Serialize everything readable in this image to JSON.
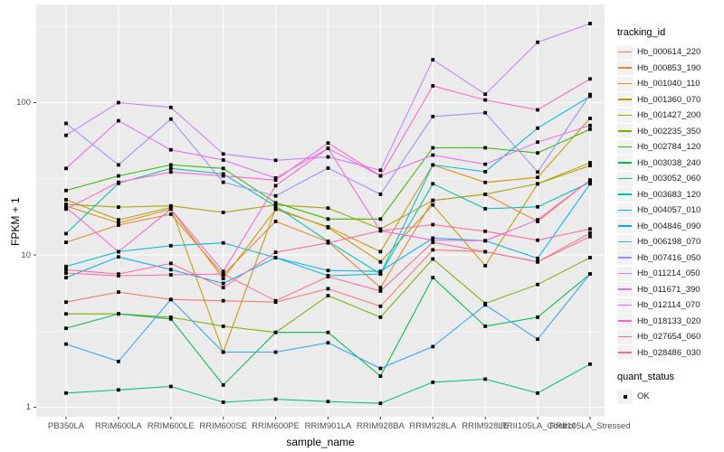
{
  "chart_data": {
    "type": "line",
    "title": "",
    "xlabel": "sample_name",
    "ylabel": "FPKM + 1",
    "y_scale": "log10",
    "y_ticks": [
      1,
      10,
      100
    ],
    "y_minor_ticks": [
      3.1623,
      31.623,
      316.23
    ],
    "ylim": [
      0.87,
      440
    ],
    "grid": true,
    "legend_position": "right",
    "legend_title": "tracking_id",
    "point_shape": "black-filled-square",
    "panel_bg": "#EBEBEB",
    "grid_color": "#FFFFFF",
    "tick_text_color": "#4D4D4D",
    "x_categories": [
      "PB350LA",
      "RRIM600LA",
      "RRIM600LE",
      "RRIM600SE",
      "RRIM600PE",
      "RRIM901LA",
      "RRIM928BA",
      "RRIM928LA",
      "RRIM928LE",
      "RRII105LA_Control",
      "RRII105LA_Stressed"
    ],
    "series": [
      {
        "name": "Hb_000614_220",
        "color": "#F8766D",
        "values": [
          4.9,
          5.7,
          5.1,
          5.0,
          4.9,
          6.0,
          4.6,
          10.8,
          10.5,
          9.0,
          13.2
        ]
      },
      {
        "name": "Hb_000853_190",
        "color": "#EA8331",
        "values": [
          12.1,
          15.7,
          18.5,
          7.4,
          16.6,
          12.2,
          6.1,
          22.8,
          25.0,
          16.6,
          31.0
        ]
      },
      {
        "name": "Hb_001040_110",
        "color": "#D89000",
        "values": [
          21.0,
          16.2,
          20.0,
          7.0,
          19.9,
          15.3,
          10.5,
          39.0,
          29.9,
          32.3,
          78.7
        ]
      },
      {
        "name": "Hb_001360_070",
        "color": "#C09B00",
        "values": [
          23.0,
          17.0,
          20.5,
          2.3,
          20.3,
          15.1,
          9.0,
          21.3,
          8.5,
          29.3,
          40.3
        ]
      },
      {
        "name": "Hb_001427_200",
        "color": "#A3A500",
        "values": [
          21.5,
          20.6,
          21.0,
          19.0,
          21.3,
          20.3,
          14.8,
          22.8,
          25.0,
          29.3,
          38.6
        ]
      },
      {
        "name": "Hb_002235_350",
        "color": "#7CAE00",
        "values": [
          4.1,
          4.1,
          3.9,
          3.4,
          3.1,
          5.4,
          3.9,
          9.4,
          4.8,
          6.4,
          9.6
        ]
      },
      {
        "name": "Hb_002784_120",
        "color": "#39B600",
        "values": [
          26.5,
          33.0,
          39.0,
          37.0,
          22.0,
          17.2,
          17.2,
          50.5,
          50.5,
          46.7,
          66.9
        ]
      },
      {
        "name": "Hb_003038_240",
        "color": "#00BB4E",
        "values": [
          3.3,
          4.1,
          3.8,
          1.4,
          3.1,
          3.1,
          1.6,
          7.1,
          3.4,
          3.9,
          7.5
        ]
      },
      {
        "name": "Hb_003052_060",
        "color": "#00C087",
        "values": [
          1.24,
          1.3,
          1.37,
          1.08,
          1.13,
          1.09,
          1.06,
          1.46,
          1.53,
          1.24,
          1.92
        ]
      },
      {
        "name": "Hb_003683_120",
        "color": "#00C0AF",
        "values": [
          13.8,
          29.5,
          37.0,
          34.0,
          20.9,
          12.3,
          7.5,
          29.3,
          20.1,
          20.7,
          29.9
        ]
      },
      {
        "name": "Hb_004057_010",
        "color": "#00BCD8",
        "values": [
          8.4,
          10.5,
          11.5,
          12.0,
          9.6,
          7.3,
          7.5,
          39.0,
          35.2,
          68.0,
          110.0
        ]
      },
      {
        "name": "Hb_004846_090",
        "color": "#00B0F6",
        "values": [
          7.1,
          9.7,
          8.0,
          6.5,
          9.6,
          7.9,
          7.8,
          12.9,
          12.4,
          9.5,
          29.3
        ]
      },
      {
        "name": "Hb_006198_070",
        "color": "#35A2FF",
        "values": [
          2.6,
          2.0,
          5.1,
          2.3,
          2.3,
          2.65,
          1.8,
          2.5,
          4.7,
          2.8,
          7.5
        ]
      },
      {
        "name": "Hb_007416_050",
        "color": "#9590FF",
        "values": [
          73,
          39,
          78,
          30,
          24.4,
          37.2,
          25,
          81,
          85.8,
          35,
          113
        ]
      },
      {
        "name": "Hb_011214_050",
        "color": "#C77CFF",
        "values": [
          61,
          100,
          93,
          46,
          41.8,
          44,
          36,
          191,
          113.6,
          249,
          330
        ]
      },
      {
        "name": "Hb_011671_390",
        "color": "#E76BF3",
        "values": [
          37,
          76,
          49,
          42,
          32,
          50,
          33,
          45.2,
          39.4,
          55,
          70.8
        ]
      },
      {
        "name": "Hb_012114_070",
        "color": "#FA62DB",
        "values": [
          20.5,
          10.5,
          20,
          7.8,
          28.5,
          50.1,
          14.4,
          12.5,
          12.4,
          17,
          31
        ]
      },
      {
        "name": "Hb_018133_020",
        "color": "#FF61C3",
        "values": [
          20,
          30,
          35,
          33,
          31,
          54.3,
          33,
          128.7,
          104,
          89.6,
          143
        ]
      },
      {
        "name": "Hb_027654_060",
        "color": "#FF67A4",
        "values": [
          8.0,
          7.5,
          8.8,
          6.1,
          10.4,
          12.0,
          14.4,
          15.8,
          14.3,
          12.5,
          14.8
        ]
      },
      {
        "name": "Hb_028486_030",
        "color": "#FF689E",
        "values": [
          7.6,
          7.3,
          7.4,
          7.5,
          5.0,
          7.2,
          5.8,
          12.1,
          10.5,
          9.0,
          13.9
        ]
      }
    ],
    "quant_legend": {
      "title": "quant_status",
      "items": [
        "OK"
      ]
    }
  }
}
